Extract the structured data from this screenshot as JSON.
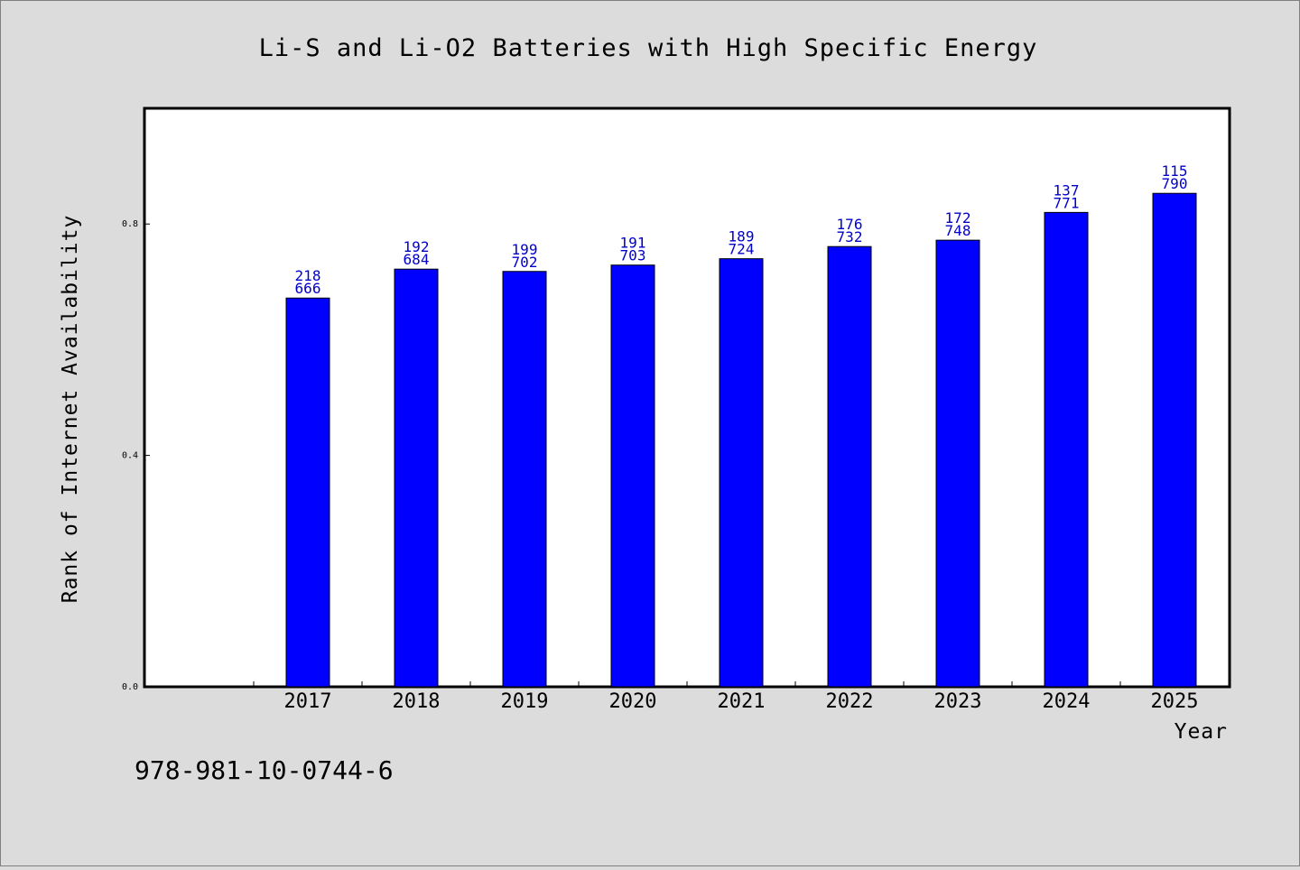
{
  "chart_data": {
    "type": "bar",
    "title": "Li-S and Li-O2 Batteries with High Specific Energy",
    "xlabel": "Year",
    "ylabel": "Rank of Internet Availability",
    "categories": [
      "2017",
      "2018",
      "2019",
      "2020",
      "2021",
      "2022",
      "2023",
      "2024",
      "2025"
    ],
    "series": [
      {
        "values": [
          0.672,
          0.722,
          0.718,
          0.729,
          0.74,
          0.761,
          0.772,
          0.82,
          0.853
        ],
        "label_top": [
          "218",
          "192",
          "199",
          "191",
          "189",
          "176",
          "172",
          "137",
          "115"
        ],
        "label_bottom": [
          "666",
          "684",
          "702",
          "703",
          "724",
          "732",
          "748",
          "771",
          "790"
        ]
      }
    ],
    "y_ticks": [
      "0.0",
      "0.4",
      "0.8"
    ],
    "ylim": [
      0,
      1.0
    ],
    "grid": false,
    "legend": "none",
    "bar_color": "#0000ff",
    "label_color": "#0000cc"
  },
  "footer": {
    "code": "978-981-10-0744-6"
  }
}
